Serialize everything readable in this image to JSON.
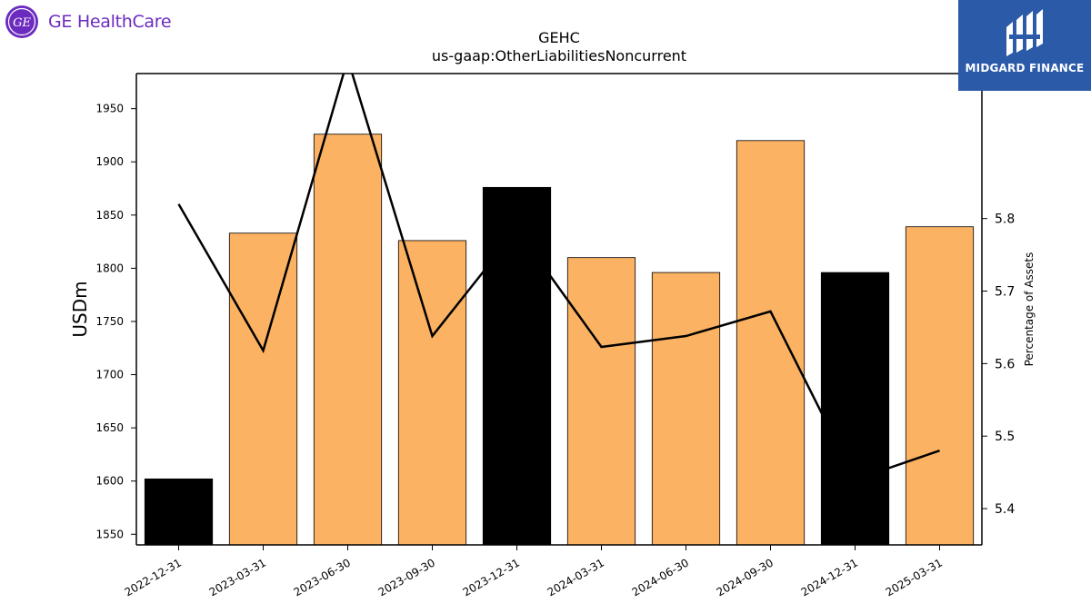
{
  "branding": {
    "company_logo_text": "GE HealthCare",
    "company_logo_mark": "GE",
    "publisher_name": "MIDGARD FINANCE",
    "company_color": "#6c2bbf",
    "publisher_color": "#2b5aa9"
  },
  "chart_data": {
    "type": "bar",
    "title": "GEHC",
    "subtitle": "us-gaap:OtherLiabilitiesNoncurrent",
    "ylabel": "USDm",
    "y2label": "Percentage of Assets",
    "ylim": [
      1540,
      1983
    ],
    "y2lim": [
      5.35,
      6.0
    ],
    "yticks": [
      1550,
      1600,
      1650,
      1700,
      1750,
      1800,
      1850,
      1900,
      1950
    ],
    "y2ticks": [
      5.4,
      5.5,
      5.6,
      5.7,
      5.8
    ],
    "categories": [
      "2022-12-31",
      "2023-03-31",
      "2023-06-30",
      "2023-09-30",
      "2023-12-31",
      "2024-03-31",
      "2024-06-30",
      "2024-09-30",
      "2024-12-31",
      "2025-03-31"
    ],
    "series": [
      {
        "type": "bar",
        "axis": "left",
        "values": [
          1602,
          1833,
          1926,
          1826,
          1876,
          1810,
          1796,
          1920,
          1796,
          1839
        ],
        "colors": [
          "#000000",
          "#fbb263",
          "#fbb263",
          "#fbb263",
          "#000000",
          "#fbb263",
          "#fbb263",
          "#fbb263",
          "#000000",
          "#fbb263"
        ]
      },
      {
        "type": "line",
        "axis": "right",
        "color": "#000000",
        "values": [
          5.82,
          5.618,
          6.02,
          5.638,
          5.785,
          5.623,
          5.638,
          5.672,
          5.44,
          5.48
        ]
      }
    ]
  }
}
